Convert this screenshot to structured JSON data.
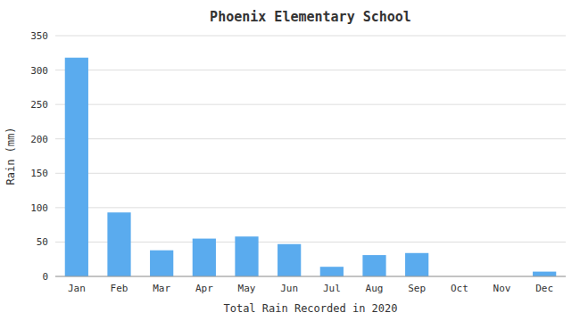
{
  "chart_data": {
    "type": "bar",
    "title": "Phoenix Elementary School",
    "xlabel": "Total Rain Recorded in 2020",
    "ylabel": "Rain (mm)",
    "categories": [
      "Jan",
      "Feb",
      "Mar",
      "Apr",
      "May",
      "Jun",
      "Jul",
      "Aug",
      "Sep",
      "Oct",
      "Nov",
      "Dec"
    ],
    "values": [
      318,
      93,
      38,
      55,
      58,
      47,
      14,
      31,
      34,
      0,
      0,
      7
    ],
    "color": "#5aabee",
    "ylim": [
      0,
      350
    ],
    "yticks": [
      0,
      50,
      100,
      150,
      200,
      250,
      300,
      350
    ],
    "grid": true
  }
}
